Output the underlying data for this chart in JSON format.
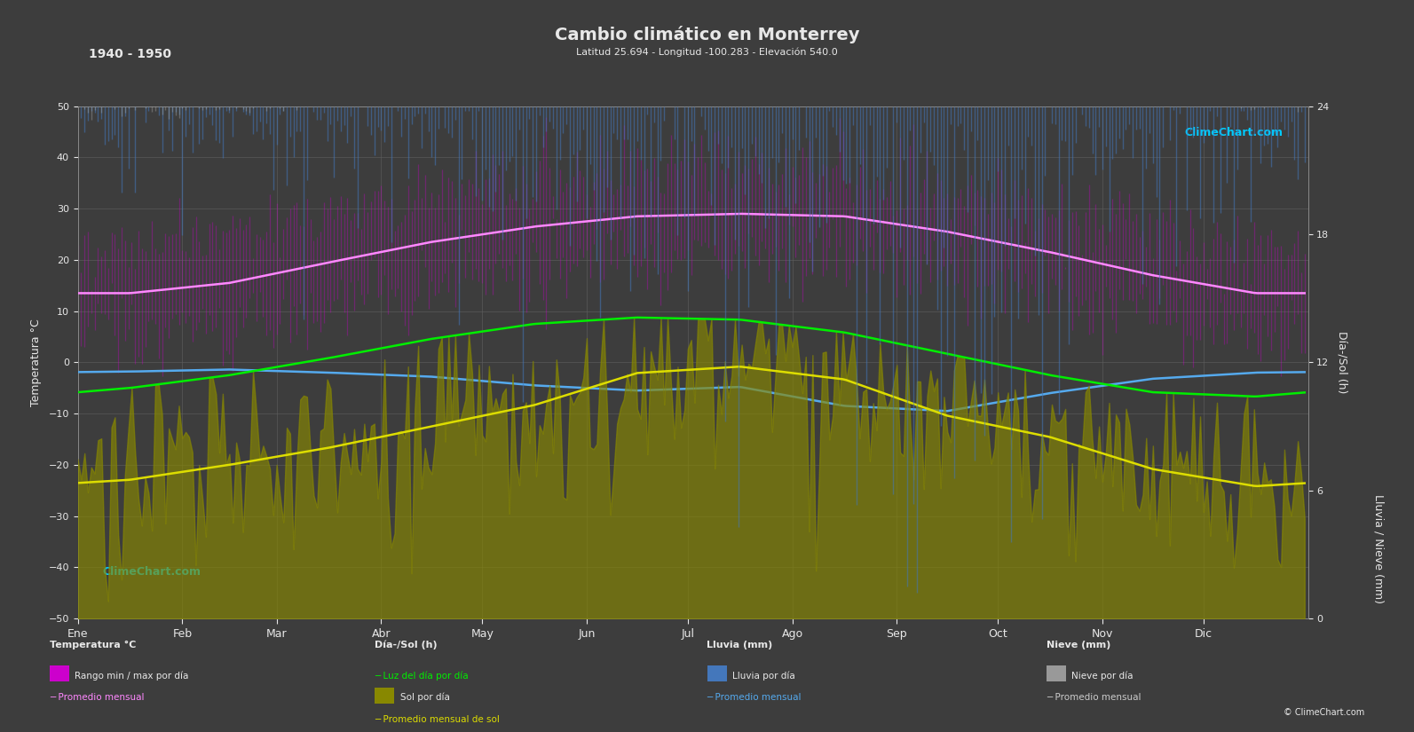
{
  "title": "Cambio climático en Monterrey",
  "subtitle": "Latitud 25.694 - Longitud -100.283 - Elevación 540.0",
  "year_range": "1940 - 1950",
  "bg_color": "#3d3d3d",
  "plot_bg": "#3d3d3d",
  "grid_color": "#606060",
  "text_color": "#e8e8e8",
  "months": [
    "Ene",
    "Feb",
    "Mar",
    "Abr",
    "May",
    "Jun",
    "Jul",
    "Ago",
    "Sep",
    "Oct",
    "Nov",
    "Dic"
  ],
  "days_per_month": [
    31,
    28,
    31,
    30,
    31,
    30,
    31,
    31,
    30,
    31,
    30,
    31
  ],
  "temp_ylim": [
    -50,
    50
  ],
  "temp_ticks": [
    -50,
    -40,
    -30,
    -20,
    -10,
    0,
    10,
    20,
    30,
    40,
    50
  ],
  "sun_ylim": [
    0,
    24
  ],
  "sun_ticks": [
    0,
    6,
    12,
    18,
    24
  ],
  "rain_ylim": [
    40,
    0
  ],
  "rain_ticks": [
    40,
    30,
    20,
    10,
    0
  ],
  "temp_avg_monthly": [
    13.5,
    15.5,
    19.5,
    23.5,
    26.5,
    28.5,
    29.0,
    28.5,
    25.5,
    21.5,
    17.0,
    13.5
  ],
  "temp_max_monthly": [
    22.0,
    25.0,
    29.5,
    34.0,
    36.0,
    38.0,
    38.5,
    37.5,
    33.5,
    29.5,
    25.0,
    21.5
  ],
  "temp_min_monthly": [
    6.0,
    7.5,
    10.5,
    14.5,
    18.0,
    20.5,
    21.5,
    21.5,
    17.5,
    14.0,
    9.5,
    6.5
  ],
  "daylight_monthly": [
    10.8,
    11.4,
    12.2,
    13.1,
    13.8,
    14.1,
    14.0,
    13.4,
    12.4,
    11.4,
    10.6,
    10.4
  ],
  "sun_monthly": [
    6.5,
    7.2,
    8.0,
    9.0,
    10.0,
    11.5,
    11.8,
    11.2,
    9.5,
    8.5,
    7.0,
    6.2
  ],
  "rain_avg_monthly": [
    18.0,
    14.0,
    20.0,
    28.0,
    45.0,
    55.0,
    48.0,
    85.0,
    95.0,
    60.0,
    32.0,
    20.0
  ],
  "snow_avg_monthly": [
    0.4,
    0.2,
    0.0,
    0.0,
    0.0,
    0.0,
    0.0,
    0.0,
    0.0,
    0.0,
    0.0,
    0.1
  ],
  "rain_line_monthly": [
    -1.8,
    -1.4,
    -2.0,
    -2.8,
    -4.5,
    -5.5,
    -4.8,
    -8.5,
    -9.5,
    -6.0,
    -3.2,
    -2.0
  ],
  "color_temp_bar": "#cc00cc",
  "color_temp_avg": "#ff88ff",
  "color_daylight": "#00ee00",
  "color_sun_fill": "#888800",
  "color_sun_line": "#dddd00",
  "color_rain_bar": "#4477bb",
  "color_rain_line": "#55aaee",
  "color_snow_bar": "#aaaaaa",
  "color_snow_line": "#cccccc"
}
